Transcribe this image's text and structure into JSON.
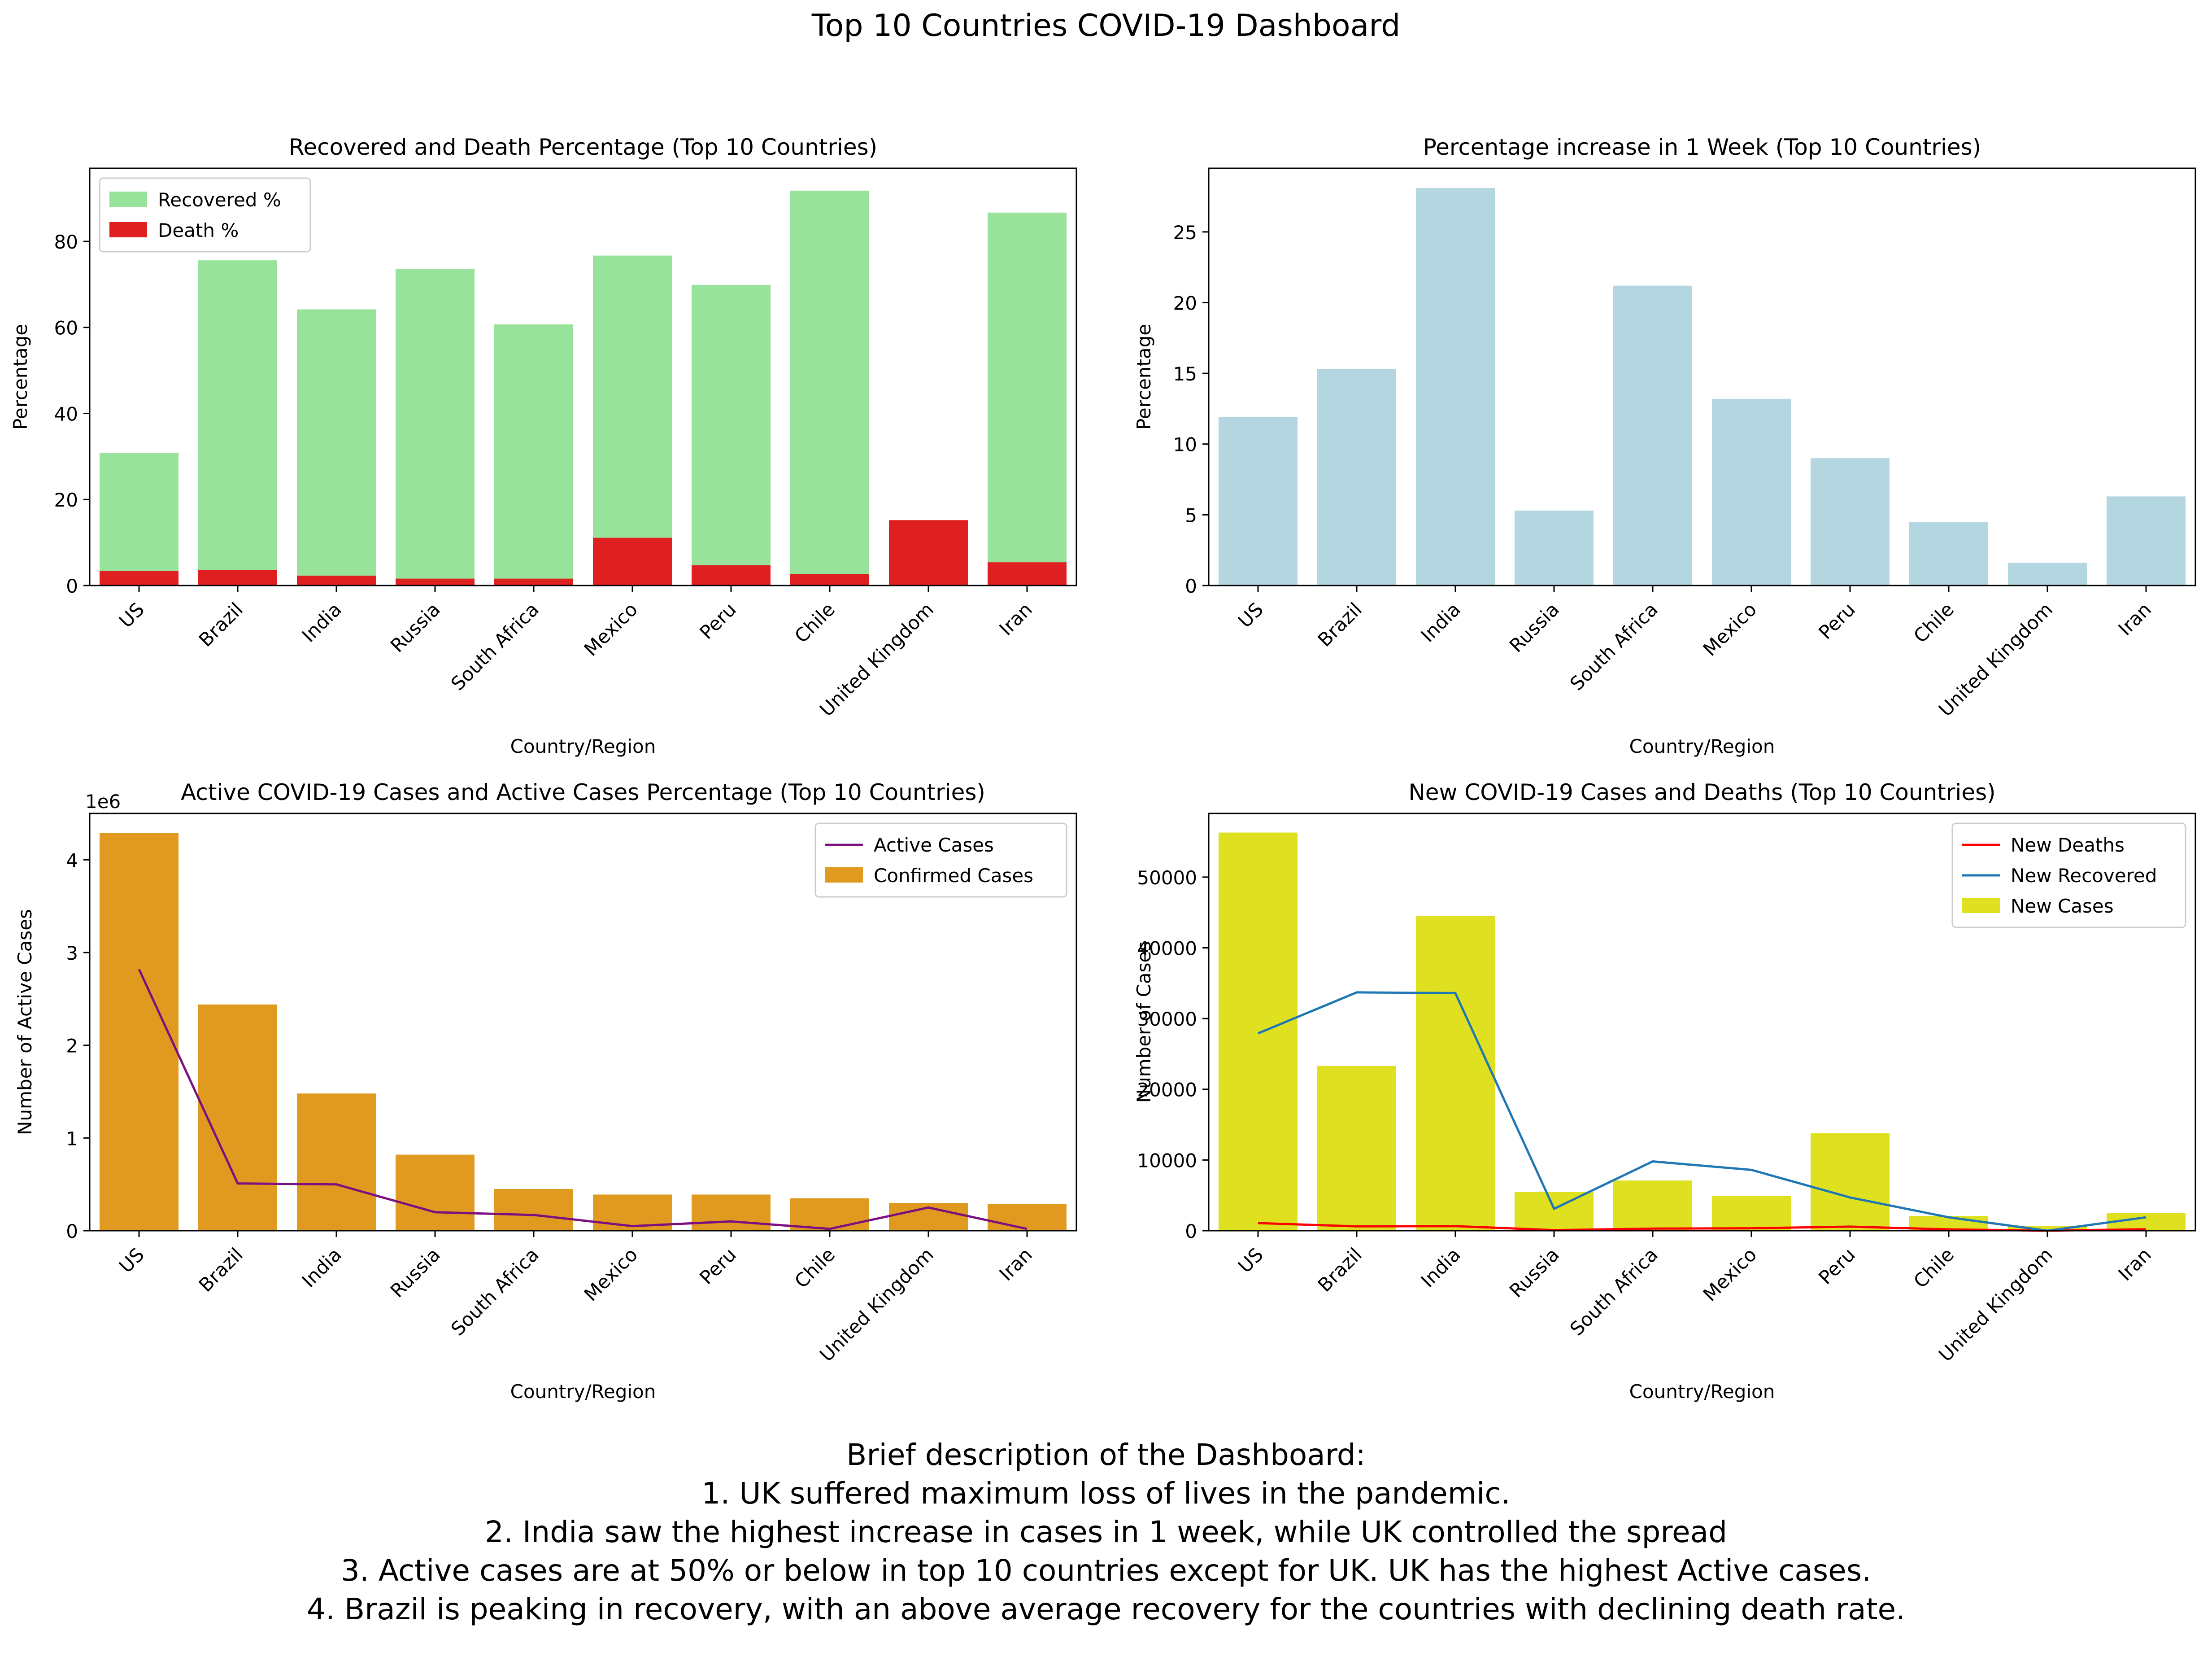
{
  "title": "Top 10 Countries COVID-19 Dashboard",
  "description": {
    "heading": "Brief description of the Dashboard:",
    "lines": [
      "1. UK suffered maximum loss of lives in the pandemic.",
      "2. India saw the highest increase in cases in 1 week, while UK controlled the spread",
      "3. Active cases are at 50% or below in top 10 countries except for UK. UK has the highest Active cases.",
      "4. Brazil is peaking in recovery, with an above average recovery for the countries with declining death rate."
    ]
  },
  "colors": {
    "recovered": "#98e29b",
    "death": "#e02020",
    "week_increase": "#b4d6e0",
    "confirmed": "#e09a20",
    "active": "#7c1080",
    "new_cases": "#dfe020",
    "new_deaths": "#ff0000",
    "new_recovered": "#1f77b4"
  },
  "chart_data": [
    {
      "type": "bar",
      "title": "Recovered and Death Percentage (Top 10 Countries)",
      "xlabel": "Country/Region",
      "ylabel": "Percentage",
      "categories": [
        "US",
        "Brazil",
        "India",
        "Russia",
        "South Africa",
        "Mexico",
        "Peru",
        "Chile",
        "United Kingdom",
        "Iran"
      ],
      "ylim": [
        0,
        97
      ],
      "yticks": [
        "0",
        "20",
        "40",
        "60",
        "80"
      ],
      "legend": "top-left",
      "series": [
        {
          "name": "Recovered %",
          "values": [
            30.8,
            75.6,
            64.2,
            73.6,
            60.7,
            76.7,
            69.9,
            91.8,
            0.0,
            86.7
          ]
        },
        {
          "name": "Death %",
          "values": [
            3.4,
            3.6,
            2.3,
            1.6,
            1.6,
            11.1,
            4.7,
            2.7,
            15.2,
            5.4
          ]
        }
      ]
    },
    {
      "type": "bar",
      "title": "Percentage increase in 1 Week (Top 10 Countries)",
      "xlabel": "Country/Region",
      "ylabel": "Percentage",
      "categories": [
        "US",
        "Brazil",
        "India",
        "Russia",
        "South Africa",
        "Mexico",
        "Peru",
        "Chile",
        "United Kingdom",
        "Iran"
      ],
      "ylim": [
        0,
        29.5
      ],
      "yticks": [
        "0",
        "5",
        "10",
        "15",
        "20",
        "25"
      ],
      "values": [
        11.9,
        15.3,
        28.1,
        5.3,
        21.2,
        13.2,
        9.0,
        4.5,
        1.6,
        6.3
      ]
    },
    {
      "type": "bar",
      "title": "Active COVID-19 Cases and Active Cases Percentage (Top 10 Countries)",
      "xlabel": "Country/Region",
      "ylabel": "Number of Active Cases",
      "scale_label": "1e6",
      "categories": [
        "US",
        "Brazil",
        "India",
        "Russia",
        "South Africa",
        "Mexico",
        "Peru",
        "Chile",
        "United Kingdom",
        "Iran"
      ],
      "ylim": [
        0,
        4.5
      ],
      "yticks": [
        "0",
        "1",
        "2",
        "3",
        "4"
      ],
      "legend": "top-right",
      "series": [
        {
          "name": "Confirmed Cases",
          "kind": "bar",
          "values": [
            4.29,
            2.44,
            1.48,
            0.82,
            0.45,
            0.39,
            0.39,
            0.35,
            0.3,
            0.29
          ]
        },
        {
          "name": "Active Cases",
          "kind": "line",
          "values": [
            2.82,
            0.51,
            0.5,
            0.2,
            0.17,
            0.05,
            0.1,
            0.02,
            0.25,
            0.02
          ]
        }
      ]
    },
    {
      "type": "bar",
      "title": "New COVID-19 Cases and Deaths (Top 10 Countries)",
      "xlabel": "Country/Region",
      "ylabel": "Number of Cases",
      "categories": [
        "US",
        "Brazil",
        "India",
        "Russia",
        "South Africa",
        "Mexico",
        "Peru",
        "Chile",
        "United Kingdom",
        "Iran"
      ],
      "ylim": [
        0,
        59000
      ],
      "yticks": [
        "0",
        "10000",
        "20000",
        "30000",
        "40000",
        "50000"
      ],
      "legend": "top-right",
      "series": [
        {
          "name": "New Deaths",
          "kind": "line",
          "values": [
            1076,
            614,
            654,
            85,
            298,
            342,
            575,
            188,
            7,
            212
          ]
        },
        {
          "name": "New Recovered",
          "kind": "line",
          "values": [
            27900,
            33700,
            33600,
            3100,
            9800,
            8600,
            4700,
            1900,
            0,
            1900
          ]
        },
        {
          "name": "New Cases",
          "kind": "bar",
          "values": [
            56300,
            23300,
            44500,
            5500,
            7100,
            4900,
            13800,
            2100,
            700,
            2500
          ]
        }
      ]
    }
  ]
}
